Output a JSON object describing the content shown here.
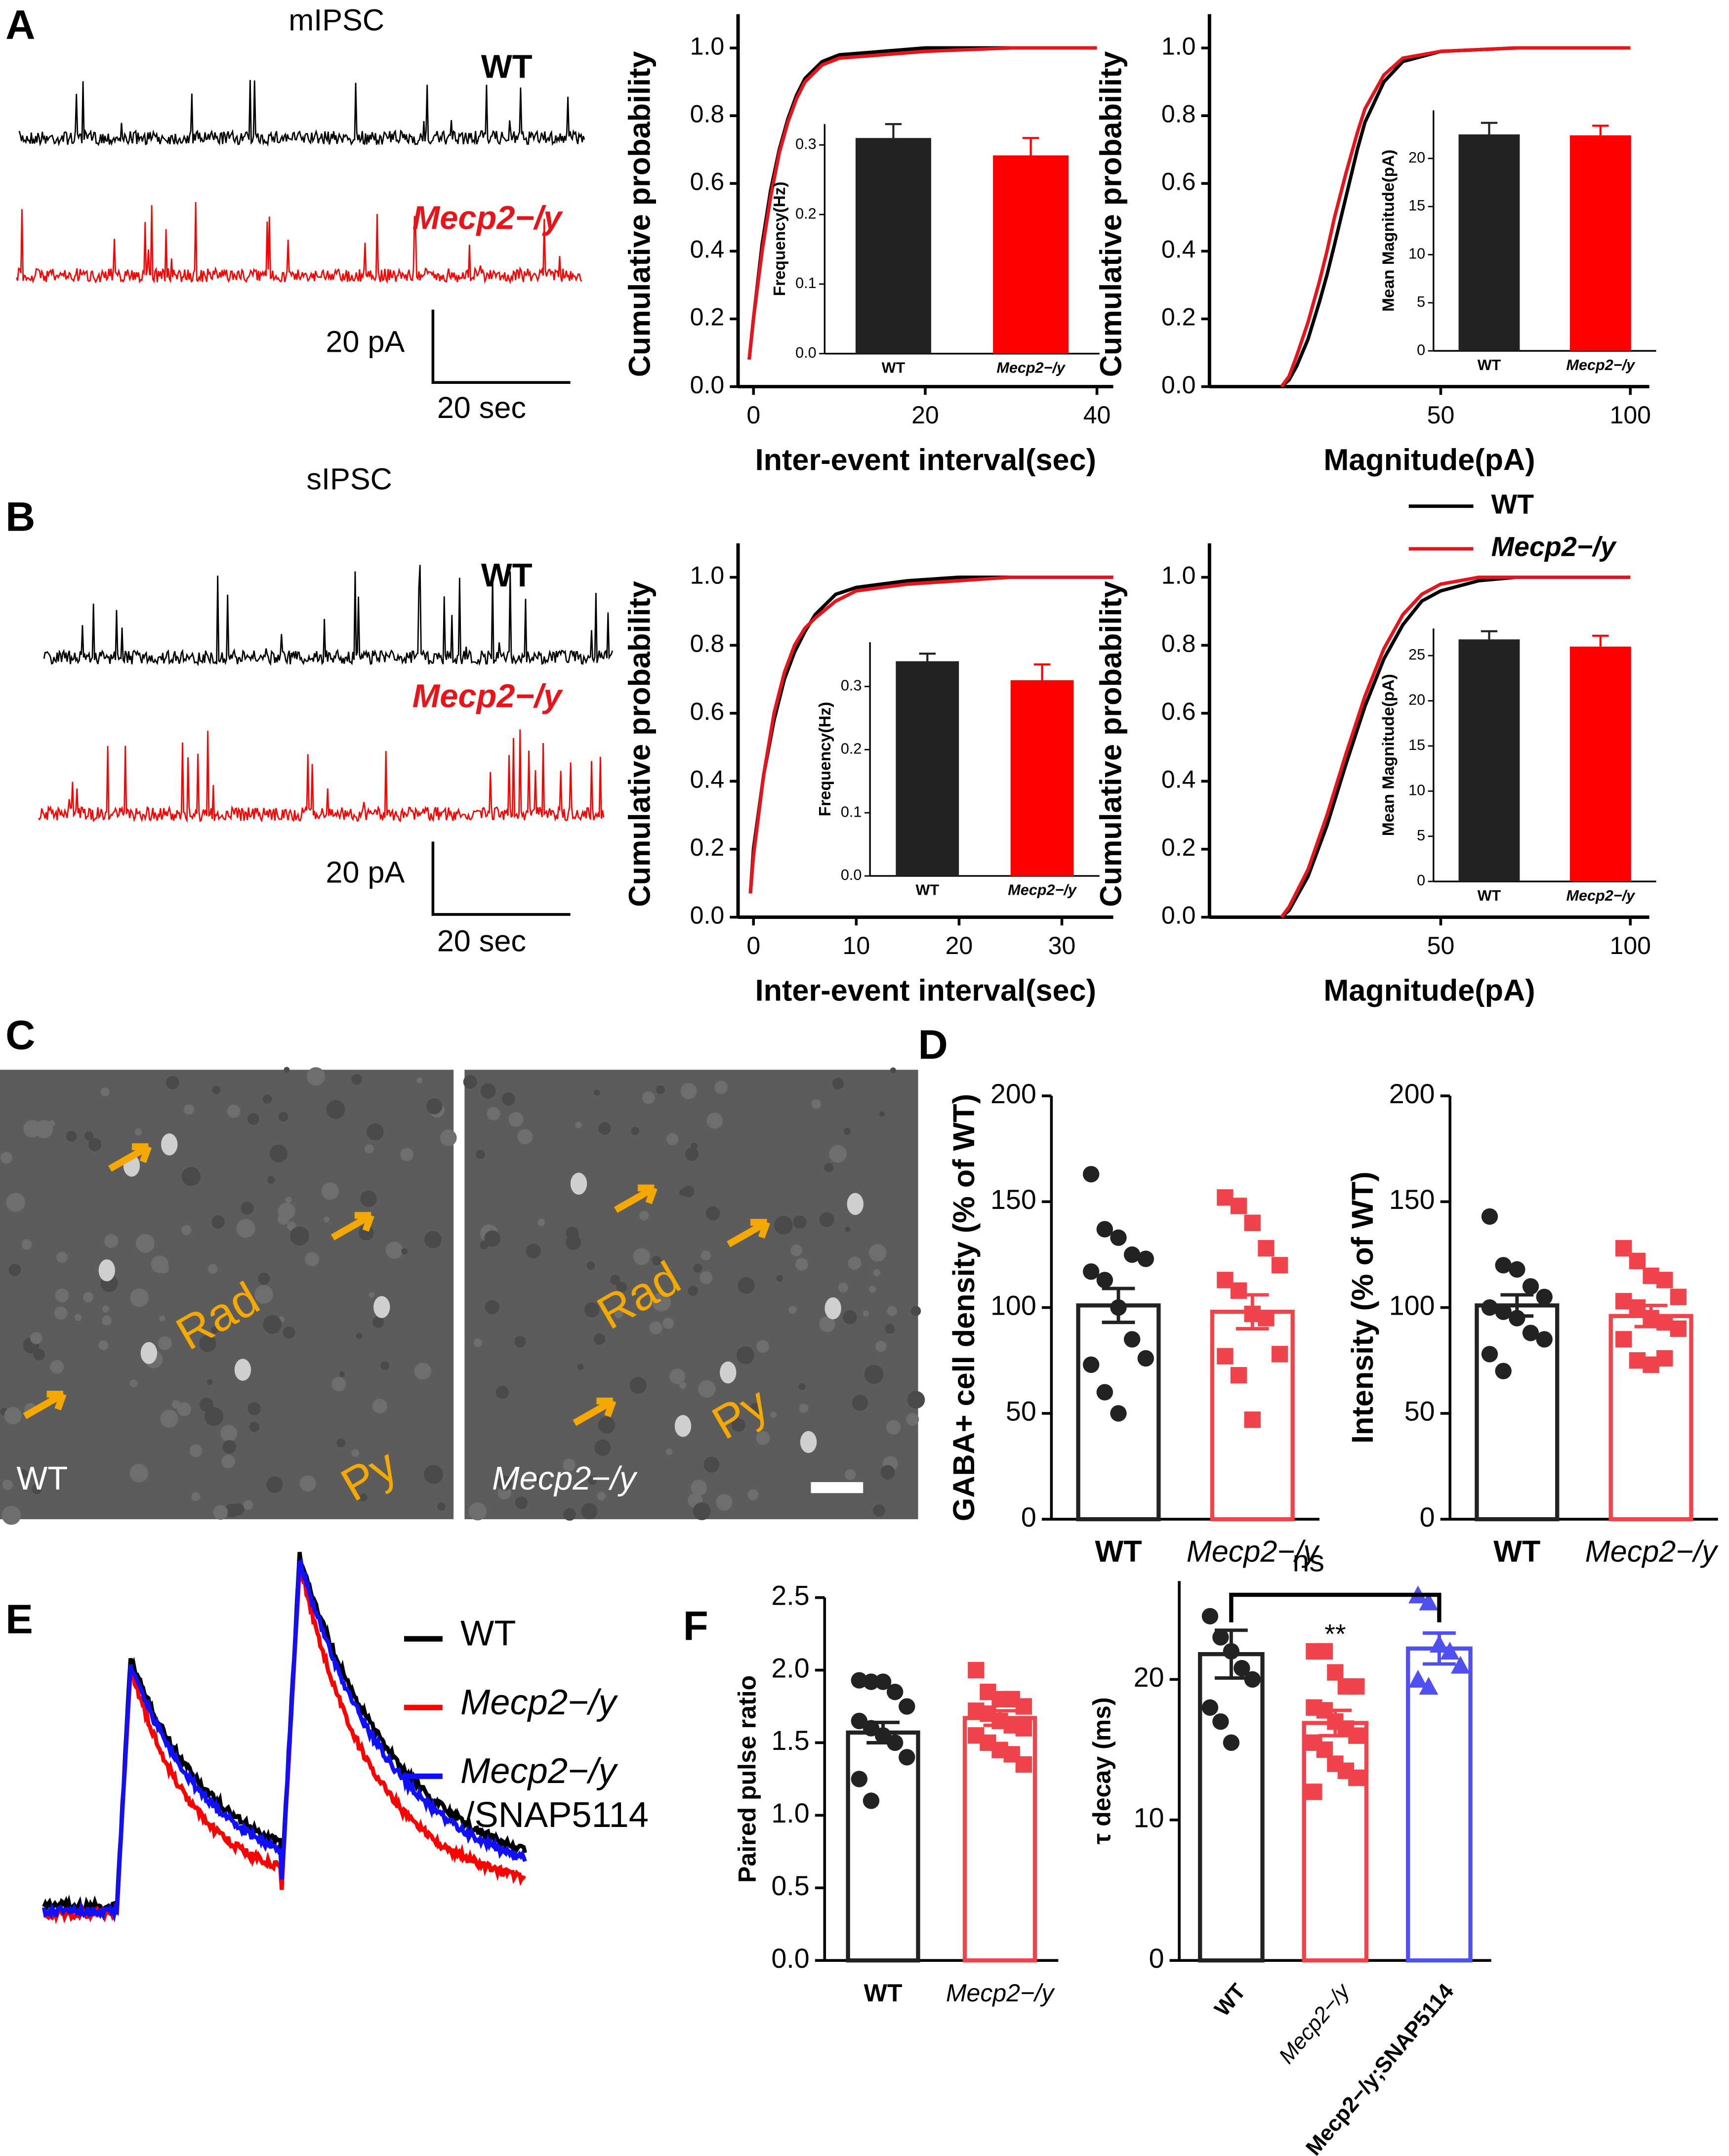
{
  "figure": {
    "panel_labels": [
      "A",
      "B",
      "C",
      "D",
      "E",
      "F"
    ],
    "mipsc": {
      "title": "mIPSC",
      "wt": "WT",
      "ko": "Mecp2−/y",
      "scale_y": "20 pA",
      "scale_x": "20 sec"
    },
    "sipsc": {
      "title": "sIPSC",
      "wt": "WT",
      "ko": "Mecp2−/y",
      "scale_y": "20 pA",
      "scale_x": "20 sec"
    },
    "panel_c": {
      "wt": "WT",
      "ko": "Mecp2−/y",
      "rad": "Rad",
      "py": "Py"
    },
    "panel_e": {
      "legend": [
        "WT",
        "Mecp2−/y",
        "Mecp2−/y",
        "/SNAP5114"
      ]
    }
  },
  "chart_data": [
    {
      "type": "line",
      "xlabel": "Inter-event interval(sec)",
      "ylabel": "Cumulative probability",
      "x": [
        -0.5,
        0,
        1,
        2,
        3,
        4,
        5,
        6,
        8,
        10,
        15,
        20,
        30,
        40
      ],
      "series": [
        {
          "name": "WT",
          "color": "#000000",
          "values": [
            0.08,
            0.2,
            0.42,
            0.58,
            0.7,
            0.79,
            0.86,
            0.91,
            0.96,
            0.98,
            0.99,
            1.0,
            1.0,
            1.0
          ]
        },
        {
          "name": "Mecp2−/y",
          "color": "#e8141b",
          "values": [
            0.08,
            0.2,
            0.4,
            0.56,
            0.69,
            0.78,
            0.85,
            0.9,
            0.95,
            0.97,
            0.98,
            0.99,
            1.0,
            1.0
          ]
        }
      ],
      "xlim": [
        -1.8,
        41.9
      ],
      "ylim": [
        0,
        1.1
      ],
      "xticks": [
        0,
        20,
        40
      ],
      "yticks": [
        {
          "value": 0,
          "label": "0.0"
        },
        0.2,
        0.4,
        0.6,
        0.8,
        {
          "value": 1,
          "label": "1.0"
        }
      ]
    },
    {
      "type": "inset",
      "ylabel": "Frequency(Hz)",
      "categories": [
        "WT",
        "Mecp2−/y"
      ],
      "values": [
        0.31,
        0.285
      ],
      "errors": [
        0.02,
        0.025
      ],
      "colors": [
        "#222222",
        "#ff0000"
      ],
      "ylim": [
        0,
        0.33
      ],
      "yticks": [
        {
          "value": 0,
          "label": "0.0"
        },
        0.1,
        0.2,
        0.3
      ]
    },
    {
      "type": "line",
      "xlabel": "Magnitude(pA)",
      "ylabel": "Cumulative probability",
      "x": [
        8,
        10,
        12,
        15,
        18,
        20,
        22,
        25,
        28,
        30,
        35,
        40,
        50,
        70,
        100
      ],
      "series": [
        {
          "name": "WT",
          "color": "#000000",
          "values": [
            0,
            0.02,
            0.06,
            0.14,
            0.25,
            0.33,
            0.42,
            0.56,
            0.7,
            0.78,
            0.9,
            0.96,
            0.99,
            1.0,
            1.0
          ]
        },
        {
          "name": "Mecp2−/y",
          "color": "#e8141b",
          "values": [
            0,
            0.03,
            0.09,
            0.19,
            0.31,
            0.4,
            0.5,
            0.63,
            0.75,
            0.82,
            0.92,
            0.97,
            0.99,
            1.0,
            1.0
          ]
        }
      ],
      "xlim": [
        -11,
        105
      ],
      "ylim": [
        0,
        1.1
      ],
      "xticks": [
        50,
        100
      ],
      "yticks": [
        {
          "value": 0,
          "label": "0.0"
        },
        0.2,
        0.4,
        0.6,
        0.8,
        {
          "value": 1,
          "label": "1.0"
        }
      ]
    },
    {
      "type": "inset",
      "ylabel": "Mean Magnitude(pA)",
      "categories": [
        "WT",
        "Mecp2−/y"
      ],
      "values": [
        22.5,
        22.4
      ],
      "errors": [
        1.2,
        1.0
      ],
      "colors": [
        "#222222",
        "#ff0000"
      ],
      "ylim": [
        0,
        25
      ],
      "yticks": [
        0,
        5,
        10,
        15,
        20
      ]
    },
    {
      "type": "line",
      "xlabel": "Inter-event interval(sec)",
      "ylabel": "Cumulative probability",
      "x": [
        -0.3,
        0,
        1,
        2,
        3,
        4,
        5,
        6,
        8,
        10,
        15,
        20,
        25,
        35
      ],
      "series": [
        {
          "name": "WT",
          "color": "#000000",
          "values": [
            0.07,
            0.2,
            0.42,
            0.58,
            0.7,
            0.78,
            0.84,
            0.89,
            0.95,
            0.97,
            0.99,
            1.0,
            1.0,
            1.0
          ]
        },
        {
          "name": "Mecp2−/y",
          "color": "#e8141b",
          "values": [
            0.07,
            0.18,
            0.42,
            0.6,
            0.72,
            0.8,
            0.85,
            0.88,
            0.93,
            0.96,
            0.98,
            0.99,
            1.0,
            1.0
          ]
        }
      ],
      "xlim": [
        -1.5,
        35
      ],
      "ylim": [
        0,
        1.1
      ],
      "xticks": [
        0,
        10,
        20,
        30
      ],
      "yticks": [
        {
          "value": 0,
          "label": "0.0"
        },
        0.2,
        0.4,
        0.6,
        0.8,
        {
          "value": 1,
          "label": "1.0"
        }
      ]
    },
    {
      "type": "inset",
      "ylabel": "Frequency(Hz)",
      "categories": [
        "WT",
        "Mecp2−/y"
      ],
      "values": [
        0.34,
        0.31
      ],
      "errors": [
        0.012,
        0.025
      ],
      "colors": [
        "#222222",
        "#ff0000"
      ],
      "ylim": [
        0,
        0.37
      ],
      "yticks": [
        {
          "value": 0,
          "label": "0.0"
        },
        0.1,
        0.2,
        0.3
      ]
    },
    {
      "type": "line",
      "xlabel": "Magnitude(pA)",
      "ylabel": "Cumulative probability",
      "x": [
        8,
        10,
        15,
        20,
        25,
        30,
        35,
        40,
        45,
        50,
        60,
        70,
        100
      ],
      "series": [
        {
          "name": "WT",
          "color": "#000000",
          "values": [
            0,
            0.02,
            0.12,
            0.27,
            0.45,
            0.62,
            0.76,
            0.86,
            0.93,
            0.96,
            0.99,
            1.0,
            1.0
          ]
        },
        {
          "name": "Mecp2−/y",
          "color": "#e8141b",
          "values": [
            0,
            0.03,
            0.14,
            0.3,
            0.48,
            0.65,
            0.79,
            0.89,
            0.95,
            0.98,
            1.0,
            1.0,
            1.0
          ]
        }
      ],
      "xlim": [
        -11,
        105
      ],
      "ylim": [
        0,
        1.1
      ],
      "xticks": [
        50,
        100
      ],
      "yticks": [
        {
          "value": 0,
          "label": "0.0"
        },
        0.2,
        0.4,
        0.6,
        0.8,
        {
          "value": 1,
          "label": "1.0"
        }
      ]
    },
    {
      "type": "inset",
      "ylabel": "Mean Magnitude(pA)",
      "categories": [
        "WT",
        "Mecp2−/y"
      ],
      "values": [
        26.8,
        26.0
      ],
      "errors": [
        0.9,
        1.2
      ],
      "colors": [
        "#222222",
        "#ff0000"
      ],
      "ylim": [
        0,
        28
      ],
      "yticks": [
        0,
        5,
        10,
        15,
        20,
        25
      ]
    },
    {
      "type": "dotbar",
      "ylabel": "GABA+ cell density (% of WT)",
      "annotation": "ns",
      "categories": [
        "WT",
        "Mecp2−/y"
      ],
      "values": [
        101,
        98
      ],
      "errors": [
        8,
        8
      ],
      "colors": [
        "#222222",
        "#f0434b"
      ],
      "markers": [
        "circle",
        "square"
      ],
      "points": [
        [
          163,
          137,
          133,
          125,
          123,
          117,
          113,
          100,
          85,
          76,
          73,
          60,
          50
        ],
        [
          152,
          148,
          140,
          128,
          120,
          113,
          108,
          97,
          95,
          78,
          77,
          68,
          47
        ]
      ],
      "ylim": [
        0,
        200
      ],
      "yticks": [
        0,
        50,
        100,
        150,
        200
      ]
    },
    {
      "type": "dotbar",
      "ylabel": "Intensity (% of WT)",
      "categories": [
        "WT",
        "Mecp2−/y"
      ],
      "values": [
        101,
        96
      ],
      "errors": [
        5,
        5
      ],
      "colors": [
        "#222222",
        "#f0434b"
      ],
      "markers": [
        "circle",
        "square"
      ],
      "points": [
        [
          143,
          120,
          118,
          110,
          105,
          100,
          98,
          95,
          88,
          85,
          78,
          70
        ],
        [
          128,
          122,
          115,
          113,
          105,
          103,
          100,
          95,
          93,
          90,
          85,
          75,
          73,
          76
        ]
      ],
      "ylim": [
        0,
        200
      ],
      "yticks": [
        0,
        50,
        100,
        150,
        200
      ]
    },
    {
      "type": "dotbar",
      "ylabel": "Paired pulse ratio",
      "categories": [
        "WT",
        "Mecp2−/y"
      ],
      "values": [
        1.57,
        1.67
      ],
      "errors": [
        0.07,
        0.05
      ],
      "colors": [
        "#222222",
        "#f0434b"
      ],
      "markers": [
        "circle",
        "square"
      ],
      "points": [
        [
          1.93,
          1.92,
          1.92,
          1.85,
          1.75,
          1.65,
          1.6,
          1.55,
          1.5,
          1.4,
          1.25,
          1.1
        ],
        [
          2.0,
          1.85,
          1.8,
          1.8,
          1.75,
          1.72,
          1.7,
          1.65,
          1.62,
          1.6,
          1.55,
          1.5,
          1.45,
          1.42,
          1.35
        ]
      ],
      "ylim": [
        0,
        2.5
      ],
      "yticks": [
        {
          "value": 0,
          "label": "0.0"
        },
        0.5,
        {
          "value": 1,
          "label": "1.0"
        },
        1.5,
        {
          "value": 2,
          "label": "2.0"
        },
        2.5
      ]
    },
    {
      "type": "dotbar",
      "ylabel": "τ decay (ms)",
      "annotation": "**",
      "categories": [
        "WT",
        "Mecp2−/y",
        "Mecp2−/y;SNAP5114"
      ],
      "values": [
        21.8,
        16.9,
        22.2
      ],
      "errors": [
        1.7,
        0.9,
        1.1
      ],
      "colors": [
        "#222222",
        "#f0434b",
        "#5050f0"
      ],
      "markers": [
        "circle",
        "square",
        "triangle"
      ],
      "points": [
        [
          24.5,
          23,
          22,
          20.8,
          20,
          18,
          17,
          15.5
        ],
        [
          22,
          22,
          20.5,
          19.5,
          19.5,
          18,
          17.8,
          17,
          16.5,
          16,
          15.5,
          15,
          14,
          13.5,
          13,
          12
        ],
        [
          26,
          25.5,
          22.5,
          22,
          21,
          20,
          19.5
        ]
      ],
      "ylim": [
        0,
        27
      ],
      "yticks": [
        0,
        10,
        20
      ]
    }
  ]
}
